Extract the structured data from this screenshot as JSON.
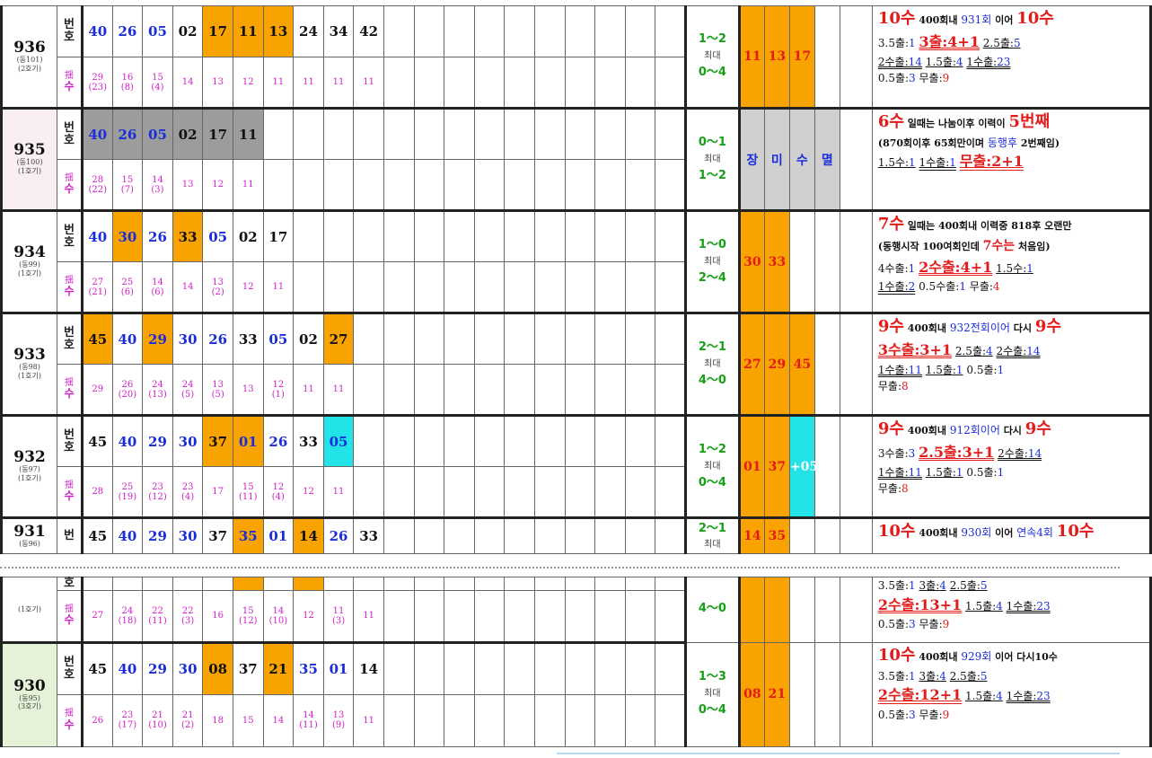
{
  "labels": {
    "beon": "번",
    "ho": "호",
    "dan": "揺",
    "su": "수",
    "max": "최대"
  },
  "rows": [
    {
      "round": "936",
      "sub1": "(동101)",
      "sub2": "(2호기)",
      "bg": "#ffffff",
      "nums": [
        {
          "v": "40",
          "c": "blue"
        },
        {
          "v": "26",
          "c": "blue"
        },
        {
          "v": "05",
          "c": "blue"
        },
        {
          "v": "02",
          "c": "black"
        },
        {
          "v": "17",
          "c": "black",
          "bg": "or"
        },
        {
          "v": "11",
          "c": "black",
          "bg": "or"
        },
        {
          "v": "13",
          "c": "black",
          "bg": "or"
        },
        {
          "v": "24",
          "c": "black"
        },
        {
          "v": "34",
          "c": "black"
        },
        {
          "v": "42",
          "c": "black"
        }
      ],
      "counts": [
        {
          "v": "29",
          "s": "(23)"
        },
        {
          "v": "16",
          "s": "(8)"
        },
        {
          "v": "15",
          "s": "(4)"
        },
        {
          "v": "14"
        },
        {
          "v": "13"
        },
        {
          "v": "12"
        },
        {
          "v": "11"
        },
        {
          "v": "11"
        },
        {
          "v": "11"
        },
        {
          "v": "11"
        }
      ],
      "range1": "1～2",
      "range2": "0～4",
      "hl": [
        {
          "v": "11",
          "bg": "or"
        },
        {
          "v": "13",
          "bg": "or"
        },
        {
          "v": "17",
          "bg": "or"
        },
        {
          "v": "",
          "bg": "none"
        }
      ],
      "notes": [
        "10수",
        "400회내",
        "931회",
        "이어",
        "10수",
        "3.5출:1",
        "3출:4+1",
        "2.5출:5",
        "2수출:14",
        "1.5출:4",
        "1수출:23",
        "0.5출:3",
        "무출:9"
      ]
    },
    {
      "round": "935",
      "sub1": "(동100)",
      "sub2": "(1호기)",
      "bg": "#f8eef4",
      "nums": [
        {
          "v": "40",
          "c": "blue",
          "bg": "gr"
        },
        {
          "v": "26",
          "c": "blue",
          "bg": "gr"
        },
        {
          "v": "05",
          "c": "blue",
          "bg": "gr"
        },
        {
          "v": "02",
          "c": "black",
          "bg": "gr"
        },
        {
          "v": "17",
          "c": "black",
          "bg": "gr"
        },
        {
          "v": "11",
          "c": "black",
          "bg": "gr"
        }
      ],
      "counts": [
        {
          "v": "28",
          "s": "(22)"
        },
        {
          "v": "15",
          "s": "(7)"
        },
        {
          "v": "14",
          "s": "(3)"
        },
        {
          "v": "13"
        },
        {
          "v": "12"
        },
        {
          "v": "11"
        }
      ],
      "range1": "0～1",
      "range2": "1～2",
      "hl": [
        {
          "v": "장",
          "bg": "lg"
        },
        {
          "v": "미",
          "bg": "lg"
        },
        {
          "v": "수",
          "bg": "lg"
        },
        {
          "v": "멸",
          "bg": "lg"
        }
      ],
      "notes": [
        "6수",
        "일때는",
        "나눔이후",
        "이력이",
        "5번째",
        "(870회이후",
        "65회만이며",
        "동행후",
        "2번째임)",
        "1.5수:1",
        "1수출:1",
        "무출:2+1"
      ]
    },
    {
      "round": "934",
      "sub1": "(동99)",
      "sub2": "(1호기)",
      "bg": "#ffffff",
      "nums": [
        {
          "v": "40",
          "c": "blue"
        },
        {
          "v": "30",
          "c": "blue",
          "bg": "or"
        },
        {
          "v": "26",
          "c": "blue"
        },
        {
          "v": "33",
          "c": "black",
          "bg": "or"
        },
        {
          "v": "05",
          "c": "blue"
        },
        {
          "v": "02",
          "c": "black"
        },
        {
          "v": "17",
          "c": "black"
        }
      ],
      "counts": [
        {
          "v": "27",
          "s": "(21)"
        },
        {
          "v": "25",
          "s": "(6)"
        },
        {
          "v": "14",
          "s": "(6)"
        },
        {
          "v": "14"
        },
        {
          "v": "13",
          "s": "(2)"
        },
        {
          "v": "12"
        },
        {
          "v": "11"
        }
      ],
      "range1": "1～0",
      "range2": "2～4",
      "hl": [
        {
          "v": "30",
          "bg": "or"
        },
        {
          "v": "33",
          "bg": "or"
        },
        {
          "v": "",
          "bg": "none"
        },
        {
          "v": "",
          "bg": "none"
        }
      ],
      "notes": [
        "7수",
        "일때는",
        "400회내",
        "이력중",
        "818후",
        "오랜만",
        "(동행시작",
        "100여회인데",
        "7수는",
        "처음임)",
        "4수출:1",
        "2수출:4+1",
        "1.5수:1",
        "1수출:2",
        "0.5수출:1",
        "무출:4"
      ]
    },
    {
      "round": "933",
      "sub1": "(동98)",
      "sub2": "(1호기)",
      "bg": "#ffffff",
      "nums": [
        {
          "v": "45",
          "c": "black",
          "bg": "or"
        },
        {
          "v": "40",
          "c": "blue"
        },
        {
          "v": "29",
          "c": "blue",
          "bg": "or"
        },
        {
          "v": "30",
          "c": "blue"
        },
        {
          "v": "26",
          "c": "blue"
        },
        {
          "v": "33",
          "c": "black"
        },
        {
          "v": "05",
          "c": "blue"
        },
        {
          "v": "02",
          "c": "black"
        },
        {
          "v": "27",
          "c": "black",
          "bg": "or"
        }
      ],
      "counts": [
        {
          "v": "29"
        },
        {
          "v": "26",
          "s": "(20)"
        },
        {
          "v": "24",
          "s": "(13)"
        },
        {
          "v": "24",
          "s": "(5)"
        },
        {
          "v": "13",
          "s": "(5)"
        },
        {
          "v": "13"
        },
        {
          "v": "12",
          "s": "(1)"
        },
        {
          "v": "11"
        },
        {
          "v": "11"
        }
      ],
      "range1": "2～1",
      "range2": "4～0",
      "hl": [
        {
          "v": "27",
          "bg": "or"
        },
        {
          "v": "29",
          "bg": "or"
        },
        {
          "v": "45",
          "bg": "or"
        },
        {
          "v": "",
          "bg": "none"
        }
      ],
      "notes": [
        "9수",
        "400회내",
        "932전회이어",
        "다시",
        "9수",
        "3수출:3+1",
        "2.5출:4",
        "2수출:14",
        "1수출:11",
        "1.5출:1",
        "0.5출:1",
        "무출:8"
      ]
    },
    {
      "round": "932",
      "sub1": "(동97)",
      "sub2": "(1호기)",
      "bg": "#ffffff",
      "nums": [
        {
          "v": "45",
          "c": "black"
        },
        {
          "v": "40",
          "c": "blue"
        },
        {
          "v": "29",
          "c": "blue"
        },
        {
          "v": "30",
          "c": "blue"
        },
        {
          "v": "37",
          "c": "black",
          "bg": "or"
        },
        {
          "v": "01",
          "c": "blue",
          "bg": "or"
        },
        {
          "v": "26",
          "c": "blue"
        },
        {
          "v": "33",
          "c": "black"
        },
        {
          "v": "05",
          "c": "blue",
          "bg": "cy"
        }
      ],
      "counts": [
        {
          "v": "28"
        },
        {
          "v": "25",
          "s": "(19)"
        },
        {
          "v": "23",
          "s": "(12)"
        },
        {
          "v": "23",
          "s": "(4)"
        },
        {
          "v": "17"
        },
        {
          "v": "15",
          "s": "(11)"
        },
        {
          "v": "12",
          "s": "(4)"
        },
        {
          "v": "12"
        },
        {
          "v": "11"
        }
      ],
      "range1": "1～2",
      "range2": "0～4",
      "hl": [
        {
          "v": "01",
          "bg": "or"
        },
        {
          "v": "37",
          "bg": "or"
        },
        {
          "v": "+05",
          "bg": "cy"
        },
        {
          "v": "",
          "bg": "none"
        }
      ],
      "notes": [
        "9수",
        "400회내",
        "912회이어",
        "다시",
        "9수",
        "3수출:3",
        "2.5출:3+1",
        "2수출:14",
        "1수출:11",
        "1.5출:1",
        "0.5출:1",
        "무출:8"
      ]
    }
  ],
  "row931": {
    "round": "931",
    "sub1": "(동96)",
    "nums": [
      {
        "v": "45",
        "c": "black"
      },
      {
        "v": "40",
        "c": "blue"
      },
      {
        "v": "29",
        "c": "blue"
      },
      {
        "v": "30",
        "c": "blue"
      },
      {
        "v": "37",
        "c": "black"
      },
      {
        "v": "35",
        "c": "blue",
        "bg": "or"
      },
      {
        "v": "01",
        "c": "blue"
      },
      {
        "v": "14",
        "c": "black",
        "bg": "or"
      },
      {
        "v": "26",
        "c": "blue"
      },
      {
        "v": "33",
        "c": "black"
      }
    ],
    "range1": "2～1",
    "hl": [
      {
        "v": "14",
        "bg": "or"
      },
      {
        "v": "35",
        "bg": "or"
      }
    ],
    "notes": [
      "10수",
      "400회내",
      "930회",
      "이어",
      "연속4회",
      "10수"
    ]
  },
  "row931b": {
    "sub2": "(1호기)",
    "counts": [
      {
        "v": "27"
      },
      {
        "v": "24",
        "s": "(18)"
      },
      {
        "v": "22",
        "s": "(11)"
      },
      {
        "v": "22",
        "s": "(3)"
      },
      {
        "v": "16"
      },
      {
        "v": "15",
        "s": "(12)"
      },
      {
        "v": "14",
        "s": "(10)"
      },
      {
        "v": "12"
      },
      {
        "v": "11",
        "s": "(3)"
      },
      {
        "v": "11"
      }
    ],
    "range2": "4～0",
    "notes": [
      "3.5출:1",
      "3출:4",
      "2.5출:5",
      "2수출:13+1",
      "1.5출:4",
      "1수출:23",
      "0.5출:3",
      "무출:9"
    ]
  },
  "row930": {
    "round": "930",
    "sub1": "(동95)",
    "sub2": "(3호기)",
    "nums": [
      {
        "v": "45",
        "c": "black"
      },
      {
        "v": "40",
        "c": "blue"
      },
      {
        "v": "29",
        "c": "blue"
      },
      {
        "v": "30",
        "c": "blue"
      },
      {
        "v": "08",
        "c": "black",
        "bg": "or"
      },
      {
        "v": "37",
        "c": "black"
      },
      {
        "v": "21",
        "c": "black",
        "bg": "or"
      },
      {
        "v": "35",
        "c": "blue"
      },
      {
        "v": "01",
        "c": "blue"
      },
      {
        "v": "14",
        "c": "black"
      }
    ],
    "counts": [
      {
        "v": "26"
      },
      {
        "v": "23",
        "s": "(17)"
      },
      {
        "v": "21",
        "s": "(10)"
      },
      {
        "v": "21",
        "s": "(2)"
      },
      {
        "v": "18"
      },
      {
        "v": "15"
      },
      {
        "v": "14"
      },
      {
        "v": "14",
        "s": "(11)"
      },
      {
        "v": "13",
        "s": "(9)"
      },
      {
        "v": "11"
      }
    ],
    "range1": "1～3",
    "range2": "0～4",
    "hl": [
      {
        "v": "08",
        "bg": "or"
      },
      {
        "v": "21",
        "bg": "or"
      }
    ],
    "notes": [
      "10수",
      "400회내",
      "929회",
      "이어",
      "다시10수",
      "3.5출:1",
      "3출:4",
      "2.5출:5",
      "2수출:12+1",
      "1.5출:4",
      "1수출:23",
      "0.5출:3",
      "무출:9"
    ]
  }
}
